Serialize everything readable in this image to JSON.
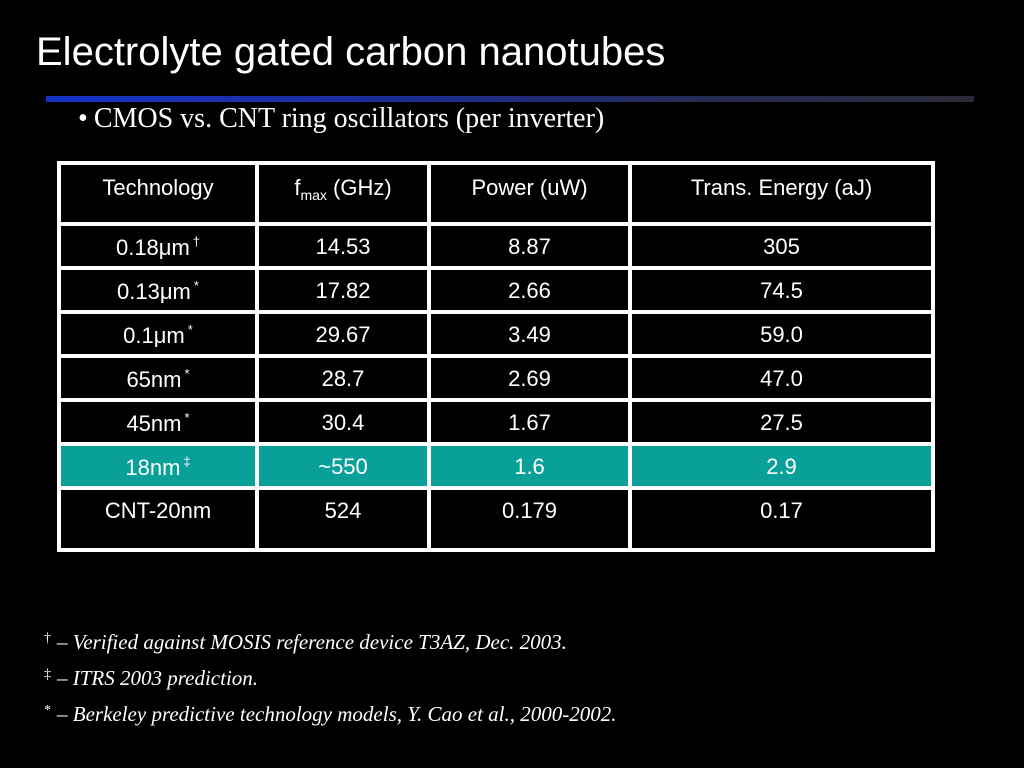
{
  "slide": {
    "title": "Electrolyte gated carbon nanotubes",
    "bullet": {
      "marker": "•",
      "text": "CMOS vs. CNT ring oscillators (per inverter)"
    },
    "rule_color": "#1633c8",
    "highlight_color": "#0aa09a"
  },
  "table": {
    "header": {
      "technology": "Technology",
      "fmax_main": "f",
      "fmax_sub": "max",
      "fmax_unit": " (GHz)",
      "power": "Power (uW)",
      "energy": "Trans. Energy (aJ)"
    },
    "rows": [
      {
        "tech": "0.18μm",
        "mark": "†",
        "fmax": "14.53",
        "power": "8.87",
        "energy": "305"
      },
      {
        "tech": "0.13μm",
        "mark": "*",
        "fmax": "17.82",
        "power": "2.66",
        "energy": "74.5"
      },
      {
        "tech": "0.1μm",
        "mark": "*",
        "fmax": "29.67",
        "power": "3.49",
        "energy": "59.0"
      },
      {
        "tech": "65nm",
        "mark": "*",
        "fmax": "28.7",
        "power": "2.69",
        "energy": "47.0"
      },
      {
        "tech": "45nm",
        "mark": "*",
        "fmax": "30.4",
        "power": "1.67",
        "energy": "27.5"
      },
      {
        "tech": "18nm",
        "mark": "‡",
        "fmax": "~550",
        "power": "1.6",
        "energy": "2.9"
      },
      {
        "tech": "CNT-20nm",
        "mark": "",
        "fmax": "524",
        "power": "0.179",
        "energy": "0.17"
      }
    ]
  },
  "footnotes": [
    {
      "mark": "†",
      "text": "– Verified against MOSIS reference device T3AZ, Dec. 2003."
    },
    {
      "mark": "‡",
      "text": "– ITRS 2003 prediction."
    },
    {
      "mark": "*",
      "text": "– Berkeley predictive technology models, Y. Cao et al., 2000-2002."
    }
  ]
}
